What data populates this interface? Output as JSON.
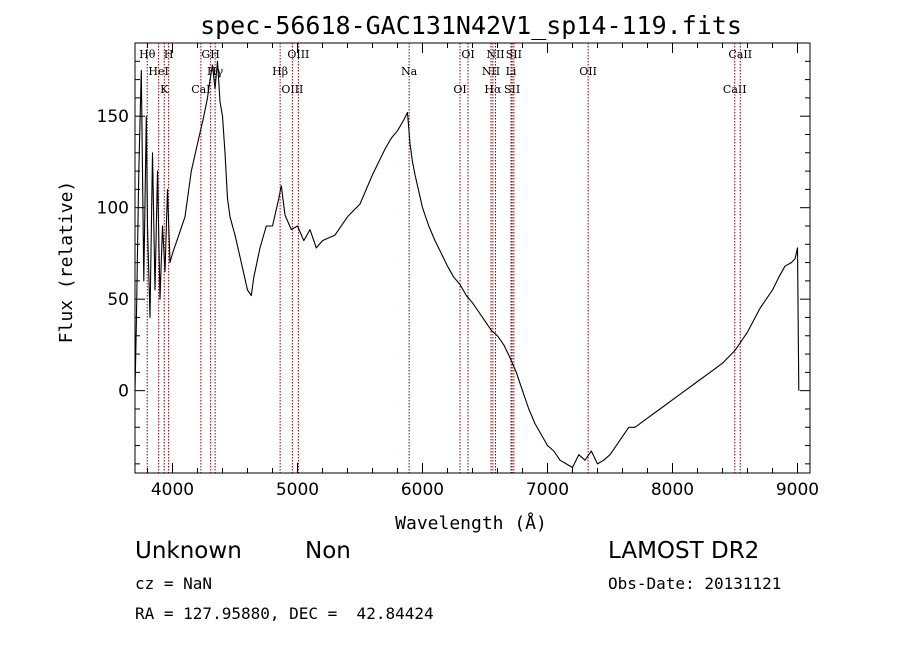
{
  "chart_data": {
    "type": "line",
    "title": "spec-56618-GAC131N42V1_sp14-119.fits",
    "xlabel": "Wavelength (Å)",
    "ylabel": "Flux (relative)",
    "xlim": [
      3700,
      9100
    ],
    "ylim": [
      -45,
      190
    ],
    "xticks": [
      4000,
      5000,
      6000,
      7000,
      8000,
      9000
    ],
    "xtick_labels": [
      "4000",
      "5000",
      "6000",
      "7000",
      "8000",
      "9000"
    ],
    "yticks": [
      0,
      50,
      100,
      150
    ],
    "ytick_labels": [
      "0",
      "50",
      "100",
      "150"
    ],
    "grid": false,
    "line_color": "#000000",
    "marker_color": "#8b0000",
    "series": [
      {
        "x": [
          3700,
          3710,
          3730,
          3750,
          3770,
          3790,
          3800,
          3820,
          3840,
          3860,
          3880,
          3900,
          3920,
          3940,
          3960,
          3980,
          4000,
          4050,
          4100,
          4150,
          4200,
          4250,
          4280,
          4300,
          4320,
          4340,
          4360,
          4380,
          4400,
          4420,
          4440,
          4460,
          4480,
          4500,
          4550,
          4600,
          4630,
          4650,
          4700,
          4750,
          4800,
          4850,
          4870,
          4900,
          4950,
          5000,
          5050,
          5100,
          5150,
          5200,
          5300,
          5400,
          5500,
          5600,
          5700,
          5750,
          5800,
          5850,
          5880,
          5900,
          5920,
          5940,
          5960,
          6000,
          6050,
          6100,
          6150,
          6200,
          6250,
          6300,
          6350,
          6400,
          6450,
          6500,
          6550,
          6600,
          6650,
          6700,
          6750,
          6800,
          6850,
          6900,
          6950,
          7000,
          7050,
          7100,
          7150,
          7200,
          7250,
          7300,
          7350,
          7400,
          7450,
          7500,
          7550,
          7600,
          7650,
          7700,
          7800,
          7900,
          8000,
          8100,
          8200,
          8300,
          8400,
          8500,
          8600,
          8700,
          8800,
          8850,
          8900,
          8950,
          8980,
          9000,
          9010
        ],
        "y": [
          0,
          35,
          120,
          175,
          60,
          150,
          90,
          40,
          130,
          55,
          120,
          50,
          90,
          65,
          110,
          70,
          75,
          85,
          95,
          120,
          135,
          150,
          160,
          170,
          178,
          165,
          180,
          158,
          150,
          130,
          105,
          95,
          90,
          85,
          70,
          55,
          52,
          62,
          78,
          90,
          90,
          105,
          112,
          96,
          88,
          90,
          82,
          88,
          78,
          82,
          85,
          95,
          102,
          118,
          132,
          138,
          142,
          148,
          152,
          135,
          125,
          118,
          112,
          100,
          90,
          82,
          75,
          68,
          62,
          58,
          52,
          48,
          43,
          38,
          33,
          30,
          25,
          18,
          10,
          0,
          -10,
          -18,
          -24,
          -30,
          -33,
          -38,
          -40,
          -42,
          -35,
          -38,
          -33,
          -40,
          -38,
          -35,
          -30,
          -25,
          -20,
          -20,
          -15,
          -10,
          -5,
          0,
          5,
          10,
          15,
          22,
          32,
          45,
          55,
          62,
          68,
          70,
          72,
          78,
          0
        ]
      }
    ],
    "lines": [
      {
        "label": "Hθ",
        "x": 3798
      },
      {
        "label": "HeI",
        "x": 3889
      },
      {
        "label": "K",
        "x": 3934
      },
      {
        "label": "H",
        "x": 3969
      },
      {
        "label": "Hγ",
        "x": 4341
      },
      {
        "label": "CaI",
        "x": 4227
      },
      {
        "label": "GH",
        "x": 4305
      },
      {
        "label": "Hβ",
        "x": 4861
      },
      {
        "label": "OIII",
        "x": 4959
      },
      {
        "label": "OIII",
        "x": 5007
      },
      {
        "label": "Na",
        "x": 5893
      },
      {
        "label": "OI",
        "x": 6300
      },
      {
        "label": "OI",
        "x": 6364
      },
      {
        "label": "NII",
        "x": 6548
      },
      {
        "label": "Hα",
        "x": 6563
      },
      {
        "label": "NII",
        "x": 6584
      },
      {
        "label": "Li",
        "x": 6708
      },
      {
        "label": "SII",
        "x": 6717
      },
      {
        "label": "SII",
        "x": 6731
      },
      {
        "label": "OII",
        "x": 7325
      },
      {
        "label": "CaII",
        "x": 8498
      },
      {
        "label": "CaII",
        "x": 8542
      }
    ]
  },
  "footer": {
    "class_label": "Unknown",
    "subclass_label": "Non",
    "survey": "LAMOST DR2",
    "cz": "cz = NaN",
    "obs_date": "Obs-Date: 20131121",
    "radec": "RA = 127.95880, DEC =  42.84424"
  }
}
